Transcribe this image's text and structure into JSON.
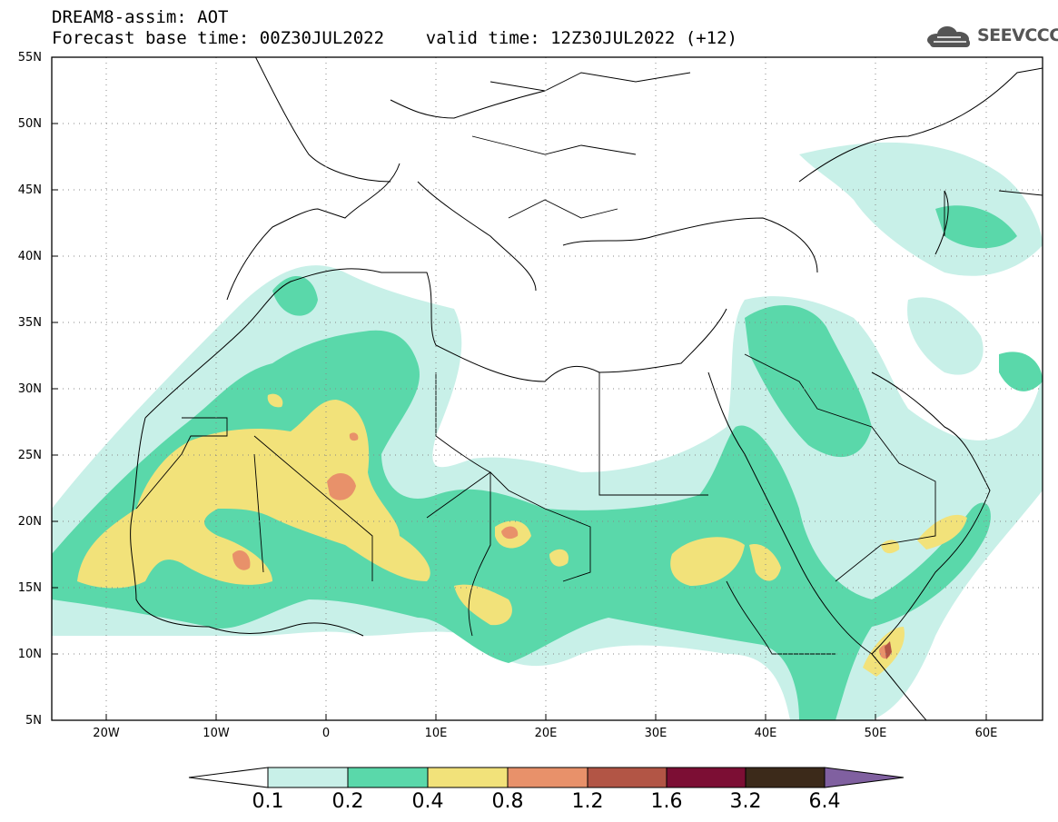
{
  "header": {
    "title": "DREAM8-assim: AOT",
    "subtitle": "Forecast base time: 00Z30JUL2022    valid time: 12Z30JUL2022 (+12)"
  },
  "logo": {
    "text": "SEEVCCC",
    "icon": "cloud-logo-icon"
  },
  "map": {
    "variable": "Aerosol Optical Thickness",
    "lon_range": [
      -25,
      65
    ],
    "lat_range": [
      5,
      55
    ],
    "lat_labels": [
      "55N",
      "50N",
      "45N",
      "40N",
      "35N",
      "30N",
      "25N",
      "20N",
      "15N",
      "10N",
      "5N"
    ],
    "lon_labels": [
      "20W",
      "10W",
      "0",
      "10E",
      "20E",
      "30E",
      "40E",
      "50E",
      "60E"
    ],
    "gridlines": true
  },
  "colorbar": {
    "levels": [
      "0.1",
      "0.2",
      "0.4",
      "0.8",
      "1.2",
      "1.6",
      "3.2",
      "6.4"
    ],
    "colors": [
      "#c8f0e8",
      "#5ad8aa",
      "#f2e27a",
      "#e8916a",
      "#b25545",
      "#7c0e34",
      "#3c2a1a",
      "#8060a0"
    ]
  }
}
